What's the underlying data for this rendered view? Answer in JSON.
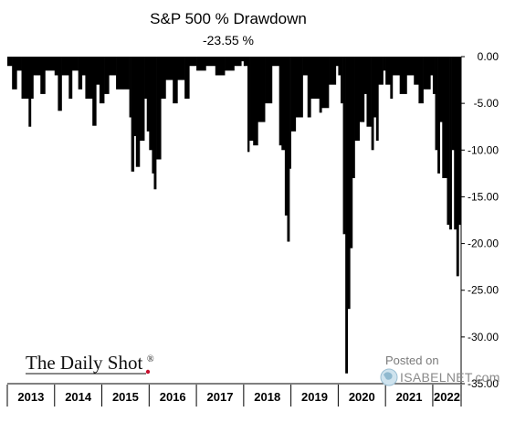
{
  "chart_data": {
    "type": "area",
    "title": "S&P 500 % Drawdown",
    "subtitle": "-23.55 %",
    "xlabel": "",
    "ylabel": "",
    "ylim": [
      -35,
      0
    ],
    "yticks": [
      "0.00",
      "-5.00",
      "-10.00",
      "-15.00",
      "-20.00",
      "-25.00",
      "-30.00",
      "-35.00"
    ],
    "y_axis_position": "right",
    "grid": false,
    "series_color": "#000000",
    "categories": [
      "2013",
      "2014",
      "2015",
      "2016",
      "2017",
      "2018",
      "2019",
      "2020",
      "2021",
      "2022"
    ],
    "x": [
      2013.0,
      2013.1,
      2013.2,
      2013.3,
      2013.45,
      2013.5,
      2013.55,
      2013.7,
      2013.8,
      2014.0,
      2014.07,
      2014.15,
      2014.3,
      2014.37,
      2014.5,
      2014.58,
      2014.65,
      2014.8,
      2014.88,
      2014.95,
      2015.05,
      2015.15,
      2015.3,
      2015.45,
      2015.58,
      2015.62,
      2015.68,
      2015.72,
      2015.8,
      2015.9,
      2015.95,
      2016.0,
      2016.06,
      2016.1,
      2016.15,
      2016.25,
      2016.35,
      2016.5,
      2016.6,
      2016.75,
      2016.85,
      2017.0,
      2017.2,
      2017.4,
      2017.6,
      2017.8,
      2017.95,
      2018.0,
      2018.08,
      2018.12,
      2018.2,
      2018.3,
      2018.45,
      2018.6,
      2018.75,
      2018.8,
      2018.87,
      2018.92,
      2018.97,
      2019.0,
      2019.1,
      2019.25,
      2019.35,
      2019.42,
      2019.6,
      2019.65,
      2019.8,
      2019.95,
      2020.0,
      2020.05,
      2020.1,
      2020.15,
      2020.2,
      2020.25,
      2020.3,
      2020.35,
      2020.45,
      2020.55,
      2020.6,
      2020.7,
      2020.75,
      2020.8,
      2020.85,
      2020.95,
      2021.0,
      2021.1,
      2021.15,
      2021.3,
      2021.45,
      2021.6,
      2021.7,
      2021.8,
      2021.95,
      2022.0,
      2022.05,
      2022.1,
      2022.15,
      2022.2,
      2022.3,
      2022.35,
      2022.4,
      2022.45,
      2022.5,
      2022.55
    ],
    "values": [
      -1.0,
      -3.5,
      -1.5,
      -4.5,
      -7.5,
      -4.5,
      -2.0,
      -4.0,
      -1.5,
      -2.0,
      -5.8,
      -2.0,
      -4.5,
      -1.5,
      -3.5,
      -2.0,
      -4.5,
      -7.4,
      -3.0,
      -5.0,
      -4.0,
      -2.0,
      -3.5,
      -3.5,
      -6.5,
      -12.3,
      -8.5,
      -11.8,
      -9.0,
      -4.5,
      -8.0,
      -10.0,
      -12.5,
      -14.2,
      -11.0,
      -4.5,
      -2.5,
      -5.0,
      -2.5,
      -4.5,
      -1.0,
      -1.5,
      -1.0,
      -2.0,
      -1.5,
      -1.0,
      -0.5,
      -1.0,
      -10.2,
      -9.0,
      -9.5,
      -7.0,
      -5.0,
      -1.0,
      -9.5,
      -10.0,
      -17.0,
      -19.8,
      -12.0,
      -8.0,
      -6.5,
      -2.0,
      -6.5,
      -4.5,
      -6.0,
      -5.5,
      -3.0,
      -1.0,
      -2.0,
      -5.0,
      -19.0,
      -33.9,
      -27.0,
      -20.5,
      -13.0,
      -9.0,
      -7.0,
      -4.0,
      -7.5,
      -10.0,
      -6.5,
      -9.0,
      -3.0,
      -1.5,
      -3.0,
      -4.5,
      -2.0,
      -4.0,
      -2.0,
      -3.0,
      -5.0,
      -3.5,
      -2.0,
      -4.0,
      -10.0,
      -12.5,
      -7.0,
      -13.0,
      -18.0,
      -18.5,
      -10.0,
      -18.5,
      -23.5,
      -18.0
    ]
  },
  "branding": {
    "logo_text": "The Daily Shot",
    "logo_mark": "®",
    "posted_on": "Posted on",
    "watermark": "ISABELNET.com"
  }
}
